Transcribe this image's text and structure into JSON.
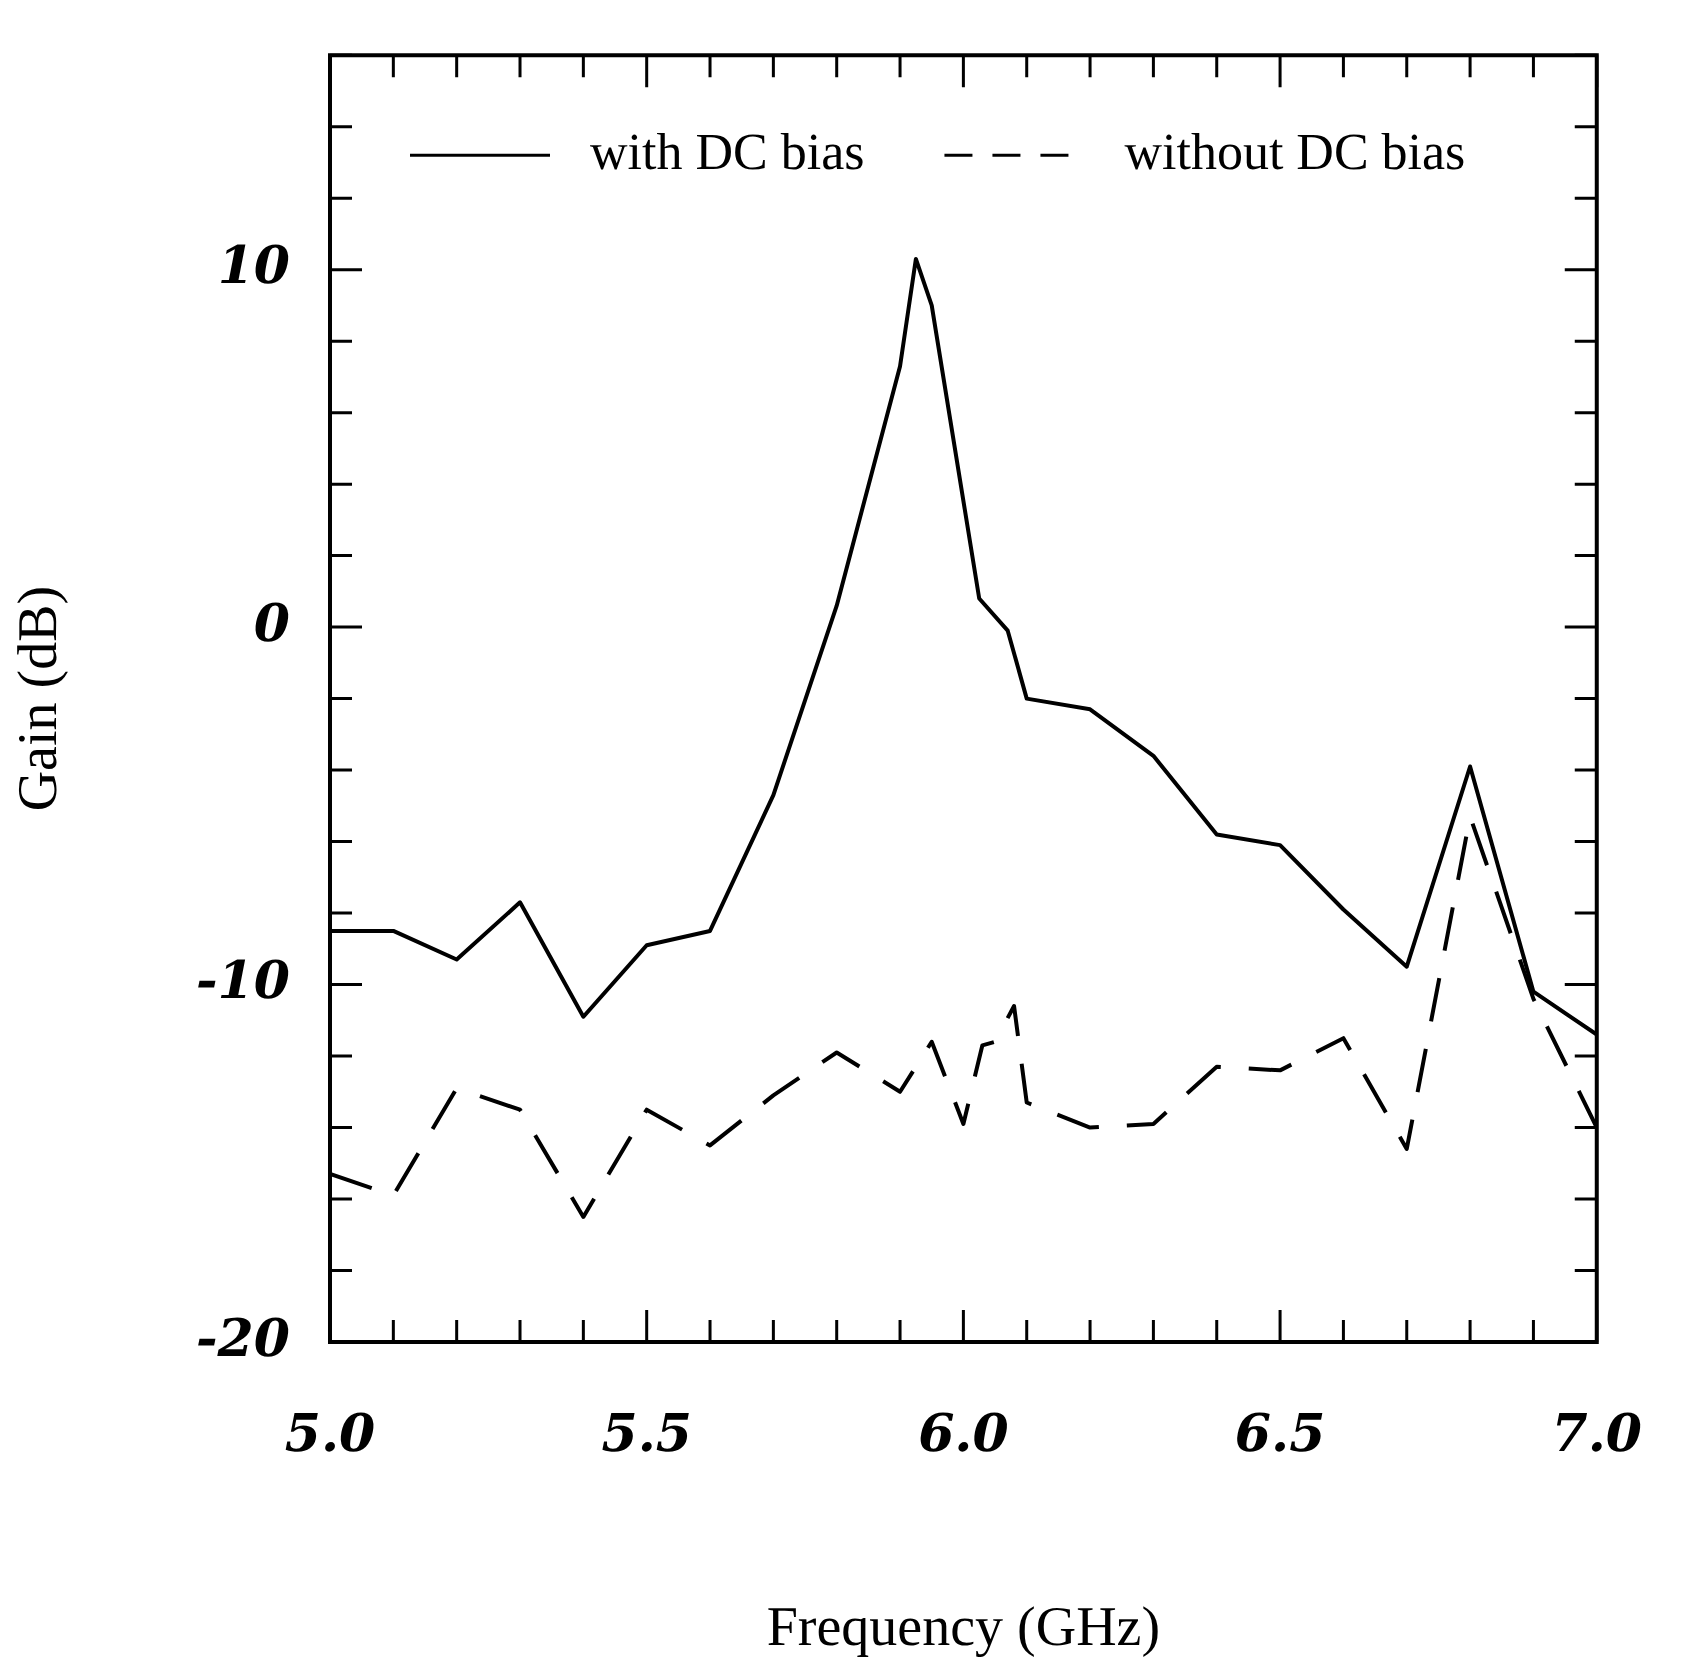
{
  "chart_data": {
    "type": "line",
    "xlabel": "Frequency (GHz)",
    "ylabel": "Gain (dB)",
    "xlim": [
      5,
      7
    ],
    "ylim": [
      -20,
      16
    ],
    "xticks": [
      {
        "value": 5,
        "label": "5.0"
      },
      {
        "value": 5.1,
        "label": null
      },
      {
        "value": 5.2,
        "label": null
      },
      {
        "value": 5.3,
        "label": null
      },
      {
        "value": 5.4,
        "label": null
      },
      {
        "value": 5.5,
        "label": "5.5"
      },
      {
        "value": 5.6,
        "label": null
      },
      {
        "value": 5.7,
        "label": null
      },
      {
        "value": 5.8,
        "label": null
      },
      {
        "value": 5.9,
        "label": null
      },
      {
        "value": 6,
        "label": "6.0"
      },
      {
        "value": 6.1,
        "label": null
      },
      {
        "value": 6.2,
        "label": null
      },
      {
        "value": 6.3,
        "label": null
      },
      {
        "value": 6.4,
        "label": null
      },
      {
        "value": 6.5,
        "label": "6.5"
      },
      {
        "value": 6.6,
        "label": null
      },
      {
        "value": 6.7,
        "label": null
      },
      {
        "value": 6.8,
        "label": null
      },
      {
        "value": 6.9,
        "label": null
      },
      {
        "value": 7,
        "label": "7.0"
      }
    ],
    "yticks": [
      -20,
      {
        "value": -18,
        "label": null
      },
      {
        "value": -16,
        "label": null
      },
      {
        "value": -14,
        "label": null
      },
      {
        "value": -12,
        "label": null
      },
      -10,
      {
        "value": -8,
        "label": null
      },
      {
        "value": -6,
        "label": null
      },
      {
        "value": -4,
        "label": null
      },
      {
        "value": -2,
        "label": null
      },
      0,
      {
        "value": 2,
        "label": null
      },
      {
        "value": 4,
        "label": null
      },
      {
        "value": 6,
        "label": null
      },
      {
        "value": 8,
        "label": null
      },
      10,
      {
        "value": 12,
        "label": null
      },
      {
        "value": 14,
        "label": null
      },
      {
        "value": 16,
        "label": null
      }
    ],
    "grid": false,
    "legend": "top",
    "marker": "none",
    "series": [
      {
        "name": "with DC bias",
        "color": "#000000",
        "line_style": "solid",
        "x": [
          5,
          5.1,
          5.2,
          5.3,
          5.4,
          5.5,
          5.6,
          5.7,
          5.8,
          5.9,
          5.925,
          5.95,
          6.025,
          6.07,
          6.1,
          6.2,
          6.3,
          6.4,
          6.5,
          6.6,
          6.7,
          6.8,
          6.9,
          7
        ],
        "values": [
          -8.5,
          -8.5,
          -9.3,
          -7.7,
          -10.9,
          -8.9,
          -8.5,
          -4.7,
          0.6,
          7.3,
          10.3,
          9.0,
          0.8,
          -0.1,
          -2.0,
          -2.3,
          -3.6,
          -5.8,
          -6.1,
          -7.9,
          -9.5,
          -3.9,
          -10.2,
          -11.4
        ]
      },
      {
        "name": "without DC bias",
        "color": "#000000",
        "line_style": "dashed",
        "x": [
          5,
          5.1,
          5.2,
          5.3,
          5.4,
          5.5,
          5.6,
          5.7,
          5.8,
          5.9,
          5.95,
          6,
          6.03,
          6.05,
          6.08,
          6.1,
          6.2,
          6.3,
          6.4,
          6.5,
          6.6,
          6.7,
          6.8,
          6.9,
          7
        ],
        "values": [
          -15.3,
          -15.9,
          -12.9,
          -13.5,
          -16.5,
          -13.5,
          -14.5,
          -13.1,
          -11.9,
          -13.0,
          -11.6,
          -13.9,
          -11.7,
          -11.6,
          -10.6,
          -13.3,
          -14.0,
          -13.9,
          -12.3,
          -12.4,
          -11.5,
          -14.6,
          -5.3,
          -10.4,
          -14.0
        ]
      }
    ]
  }
}
